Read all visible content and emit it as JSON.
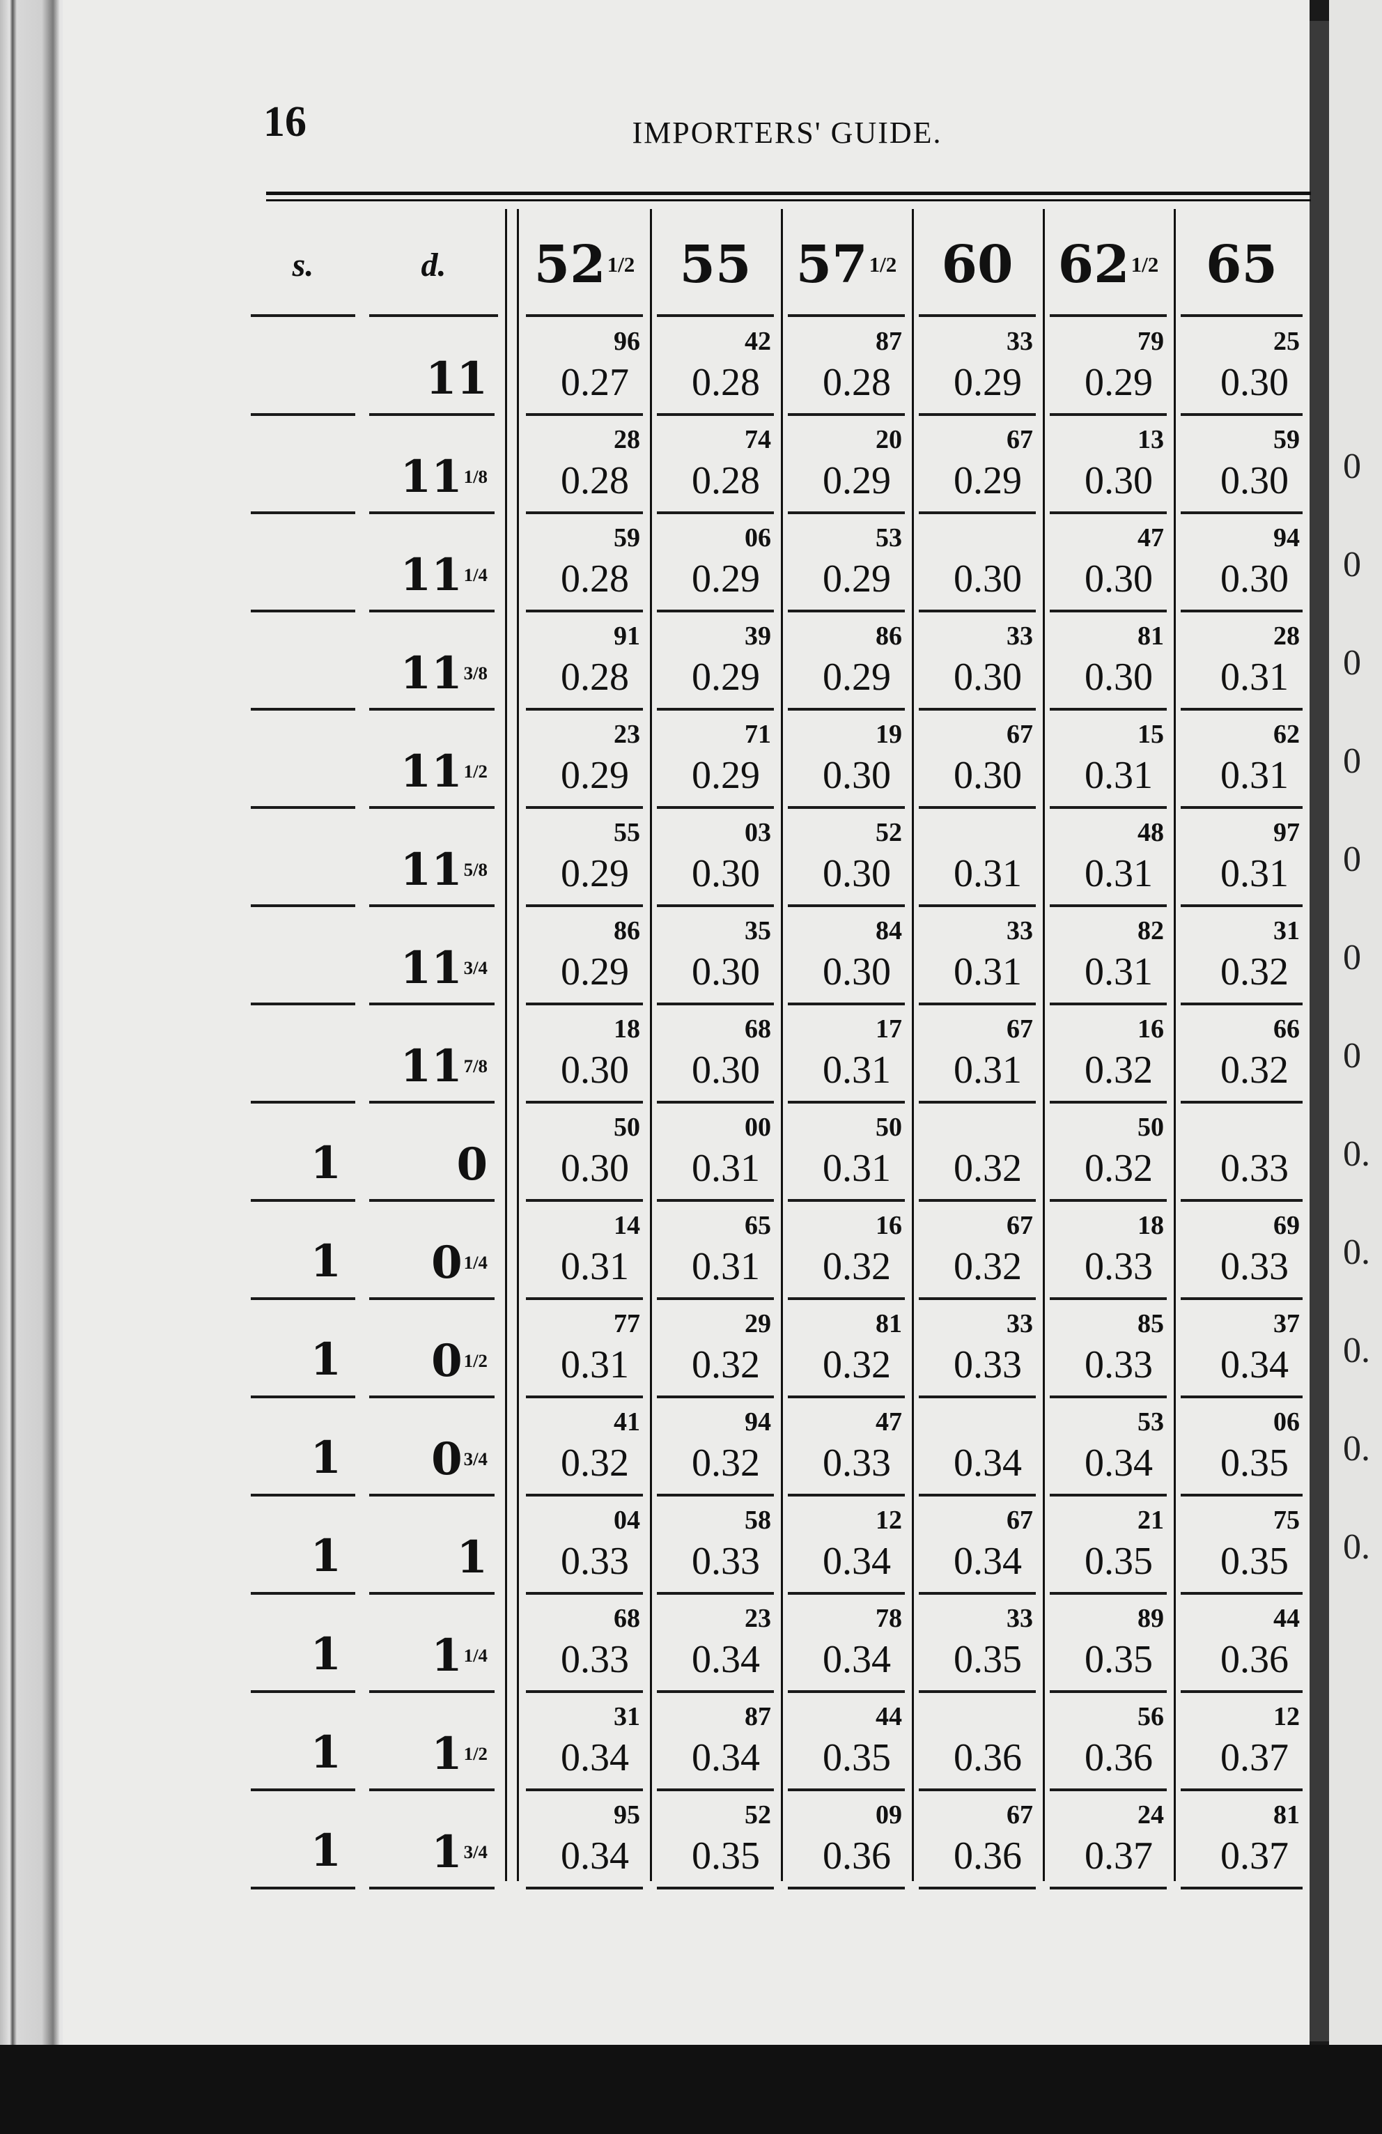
{
  "header": {
    "page_number": "16",
    "running_title": "IMPORTERS' GUIDE."
  },
  "table": {
    "columns": [
      {
        "whole": "s.",
        "frac": ""
      },
      {
        "whole": "d.",
        "frac": ""
      },
      {
        "whole": "52",
        "frac": "1/2"
      },
      {
        "whole": "55",
        "frac": ""
      },
      {
        "whole": "57",
        "frac": "1/2"
      },
      {
        "whole": "60",
        "frac": ""
      },
      {
        "whole": "62",
        "frac": "1/2"
      },
      {
        "whole": "65",
        "frac": ""
      }
    ],
    "rows": [
      {
        "s": "",
        "d": "11",
        "frac": "",
        "cells": [
          [
            "0.27",
            "96"
          ],
          [
            "0.28",
            "42"
          ],
          [
            "0.28",
            "87"
          ],
          [
            "0.29",
            "33"
          ],
          [
            "0.29",
            "79"
          ],
          [
            "0.30",
            "25"
          ]
        ]
      },
      {
        "s": "",
        "d": "11",
        "frac": "1/8",
        "cells": [
          [
            "0.28",
            "28"
          ],
          [
            "0.28",
            "74"
          ],
          [
            "0.29",
            "20"
          ],
          [
            "0.29",
            "67"
          ],
          [
            "0.30",
            "13"
          ],
          [
            "0.30",
            "59"
          ]
        ]
      },
      {
        "s": "",
        "d": "11",
        "frac": "1/4",
        "cells": [
          [
            "0.28",
            "59"
          ],
          [
            "0.29",
            "06"
          ],
          [
            "0.29",
            "53"
          ],
          [
            "0.30",
            ""
          ],
          [
            "0.30",
            "47"
          ],
          [
            "0.30",
            "94"
          ]
        ]
      },
      {
        "s": "",
        "d": "11",
        "frac": "3/8",
        "cells": [
          [
            "0.28",
            "91"
          ],
          [
            "0.29",
            "39"
          ],
          [
            "0.29",
            "86"
          ],
          [
            "0.30",
            "33"
          ],
          [
            "0.30",
            "81"
          ],
          [
            "0.31",
            "28"
          ]
        ]
      },
      {
        "s": "",
        "d": "11",
        "frac": "1/2",
        "cells": [
          [
            "0.29",
            "23"
          ],
          [
            "0.29",
            "71"
          ],
          [
            "0.30",
            "19"
          ],
          [
            "0.30",
            "67"
          ],
          [
            "0.31",
            "15"
          ],
          [
            "0.31",
            "62"
          ]
        ]
      },
      {
        "s": "",
        "d": "11",
        "frac": "5/8",
        "cells": [
          [
            "0.29",
            "55"
          ],
          [
            "0.30",
            "03"
          ],
          [
            "0.30",
            "52"
          ],
          [
            "0.31",
            ""
          ],
          [
            "0.31",
            "48"
          ],
          [
            "0.31",
            "97"
          ]
        ]
      },
      {
        "s": "",
        "d": "11",
        "frac": "3/4",
        "cells": [
          [
            "0.29",
            "86"
          ],
          [
            "0.30",
            "35"
          ],
          [
            "0.30",
            "84"
          ],
          [
            "0.31",
            "33"
          ],
          [
            "0.31",
            "82"
          ],
          [
            "0.32",
            "31"
          ]
        ]
      },
      {
        "s": "",
        "d": "11",
        "frac": "7/8",
        "cells": [
          [
            "0.30",
            "18"
          ],
          [
            "0.30",
            "68"
          ],
          [
            "0.31",
            "17"
          ],
          [
            "0.31",
            "67"
          ],
          [
            "0.32",
            "16"
          ],
          [
            "0.32",
            "66"
          ]
        ]
      },
      {
        "s": "1",
        "d": "0",
        "frac": "",
        "cells": [
          [
            "0.30",
            "50"
          ],
          [
            "0.31",
            "00"
          ],
          [
            "0.31",
            "50"
          ],
          [
            "0.32",
            ""
          ],
          [
            "0.32",
            "50"
          ],
          [
            "0.33",
            ""
          ]
        ]
      },
      {
        "s": "1",
        "d": "0",
        "frac": "1/4",
        "cells": [
          [
            "0.31",
            "14"
          ],
          [
            "0.31",
            "65"
          ],
          [
            "0.32",
            "16"
          ],
          [
            "0.32",
            "67"
          ],
          [
            "0.33",
            "18"
          ],
          [
            "0.33",
            "69"
          ]
        ]
      },
      {
        "s": "1",
        "d": "0",
        "frac": "1/2",
        "cells": [
          [
            "0.31",
            "77"
          ],
          [
            "0.32",
            "29"
          ],
          [
            "0.32",
            "81"
          ],
          [
            "0.33",
            "33"
          ],
          [
            "0.33",
            "85"
          ],
          [
            "0.34",
            "37"
          ]
        ]
      },
      {
        "s": "1",
        "d": "0",
        "frac": "3/4",
        "cells": [
          [
            "0.32",
            "41"
          ],
          [
            "0.32",
            "94"
          ],
          [
            "0.33",
            "47"
          ],
          [
            "0.34",
            ""
          ],
          [
            "0.34",
            "53"
          ],
          [
            "0.35",
            "06"
          ]
        ]
      },
      {
        "s": "1",
        "d": "1",
        "frac": "",
        "cells": [
          [
            "0.33",
            "04"
          ],
          [
            "0.33",
            "58"
          ],
          [
            "0.34",
            "12"
          ],
          [
            "0.34",
            "67"
          ],
          [
            "0.35",
            "21"
          ],
          [
            "0.35",
            "75"
          ]
        ]
      },
      {
        "s": "1",
        "d": "1",
        "frac": "1/4",
        "cells": [
          [
            "0.33",
            "68"
          ],
          [
            "0.34",
            "23"
          ],
          [
            "0.34",
            "78"
          ],
          [
            "0.35",
            "33"
          ],
          [
            "0.35",
            "89"
          ],
          [
            "0.36",
            "44"
          ]
        ]
      },
      {
        "s": "1",
        "d": "1",
        "frac": "1/2",
        "cells": [
          [
            "0.34",
            "31"
          ],
          [
            "0.34",
            "87"
          ],
          [
            "0.35",
            "44"
          ],
          [
            "0.36",
            ""
          ],
          [
            "0.36",
            "56"
          ],
          [
            "0.37",
            "12"
          ]
        ]
      },
      {
        "s": "1",
        "d": "1",
        "frac": "3/4",
        "cells": [
          [
            "0.34",
            "95"
          ],
          [
            "0.35",
            "52"
          ],
          [
            "0.36",
            "09"
          ],
          [
            "0.36",
            "67"
          ],
          [
            "0.37",
            "24"
          ],
          [
            "0.37",
            "81"
          ]
        ]
      }
    ]
  },
  "next_page_fragments": [
    "0",
    "0",
    "0",
    "0",
    "0",
    "0",
    "0",
    "0.",
    "0.",
    "0.",
    "0.",
    "0."
  ]
}
